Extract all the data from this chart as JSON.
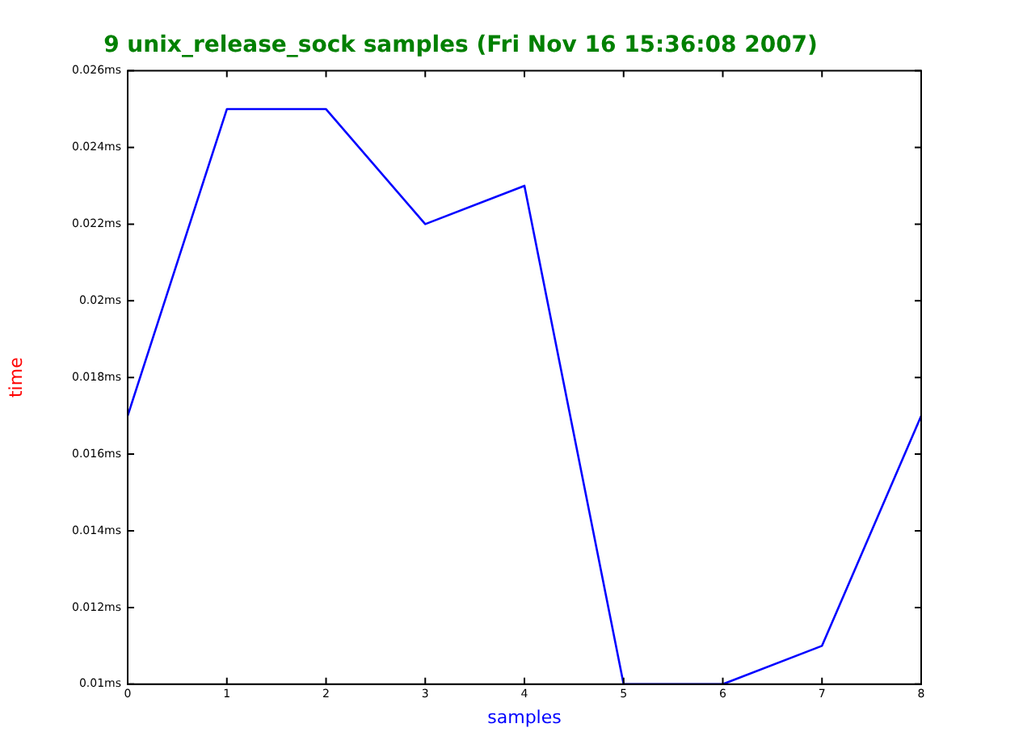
{
  "chart_data": {
    "type": "line",
    "title": "9 unix_release_sock samples (Fri Nov 16 15:36:08 2007)",
    "xlabel": "samples",
    "ylabel": "time",
    "x": [
      0,
      1,
      2,
      3,
      4,
      5,
      6,
      7,
      8
    ],
    "series": [
      {
        "color": "#0000ff",
        "values": [
          0.017,
          0.025,
          0.025,
          0.022,
          0.023,
          0.01,
          0.01,
          0.011,
          0.017
        ]
      }
    ],
    "xlim": [
      0,
      8
    ],
    "xticks": [
      0,
      1,
      2,
      3,
      4,
      5,
      6,
      7,
      8
    ],
    "ylim": [
      0.01,
      0.026
    ],
    "yticks": [
      {
        "value": 0.01,
        "label": "0.01ms"
      },
      {
        "value": 0.012,
        "label": "0.012ms"
      },
      {
        "value": 0.014,
        "label": "0.014ms"
      },
      {
        "value": 0.016,
        "label": "0.016ms"
      },
      {
        "value": 0.018,
        "label": "0.018ms"
      },
      {
        "value": 0.02,
        "label": "0.02ms"
      },
      {
        "value": 0.022,
        "label": "0.022ms"
      },
      {
        "value": 0.024,
        "label": "0.024ms"
      },
      {
        "value": 0.026,
        "label": "0.026ms"
      }
    ],
    "grid": false,
    "legend": false,
    "marker": "none",
    "line_style": "solid"
  }
}
